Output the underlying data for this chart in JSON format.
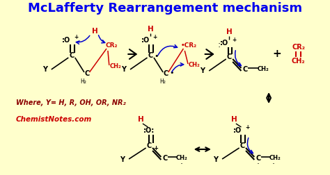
{
  "title": "McLafferty Rearrangement mechanism",
  "title_color": "#0000EE",
  "title_fontsize": 13,
  "bg_color": "#FFFFCC",
  "red_color": "#CC0000",
  "blue_color": "#0000CC",
  "black_color": "#000000",
  "where_text": "Where, Y= H, R, OH, OR, NR₂",
  "website_text": "ChemistNotes.com",
  "website_color": "#CC0000"
}
